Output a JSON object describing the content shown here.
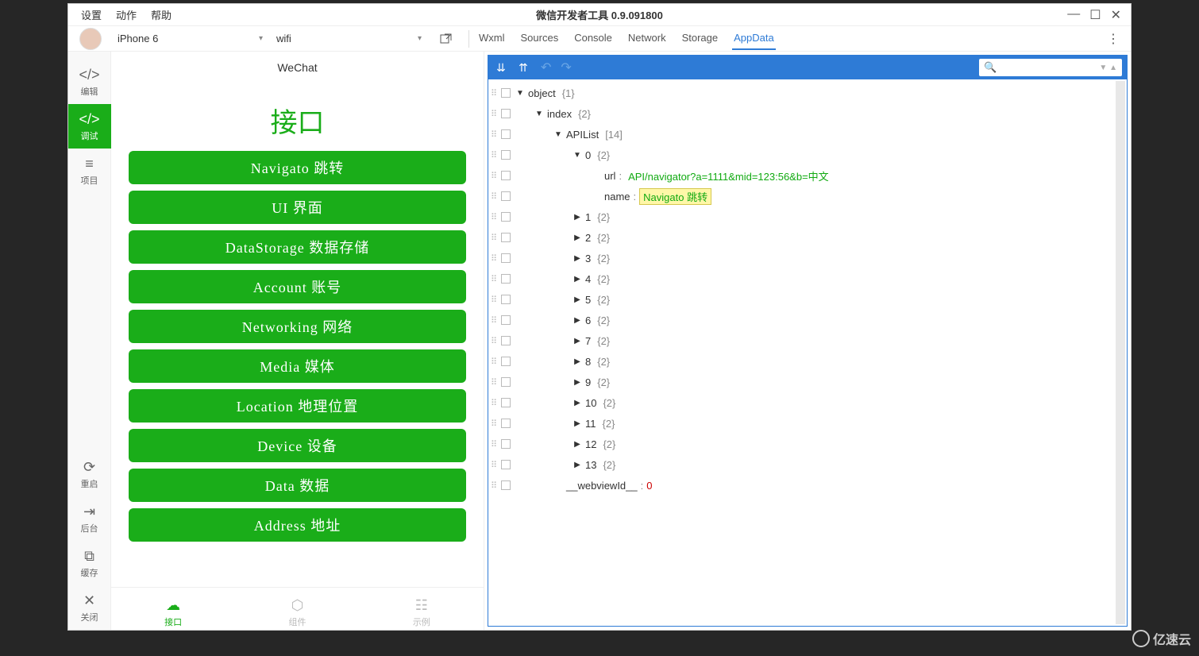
{
  "window": {
    "title": "微信开发者工具 0.9.091800",
    "menus": [
      "设置",
      "动作",
      "帮助"
    ]
  },
  "toolbar": {
    "device": "iPhone 6",
    "network": "wifi",
    "devtabs": [
      "Wxml",
      "Sources",
      "Console",
      "Network",
      "Storage",
      "AppData"
    ],
    "active_devtab": "AppData"
  },
  "sidebar": {
    "items": [
      {
        "icon": "</>",
        "label": "编辑"
      },
      {
        "icon": "</>",
        "label": "调试"
      },
      {
        "icon": "≡",
        "label": "项目"
      }
    ],
    "active_index": 1,
    "bottom": [
      {
        "icon": "⟳",
        "label": "重启"
      },
      {
        "icon": "⇥",
        "label": "后台"
      },
      {
        "icon": "⧉",
        "label": "缓存"
      },
      {
        "icon": "✕",
        "label": "关闭"
      }
    ]
  },
  "simulator": {
    "header": "WeChat",
    "title": "接口",
    "buttons": [
      "Navigato 跳转",
      "UI 界面",
      "DataStorage 数据存储",
      "Account 账号",
      "Networking 网络",
      "Media 媒体",
      "Location 地理位置",
      "Device 设备",
      "Data 数据",
      "Address 地址"
    ],
    "footer_tabs": [
      {
        "label": "接口"
      },
      {
        "label": "组件"
      },
      {
        "label": "示例"
      }
    ],
    "footer_active": 0
  },
  "appdata": {
    "root_label": "object",
    "root_count": "{1}",
    "index_label": "index",
    "index_count": "{2}",
    "apilist_label": "APIList",
    "apilist_count": "[14]",
    "item0_index": "0",
    "item0_count": "{2}",
    "item0_url_key": "url",
    "item0_url_val": "API/navigator?a=1111&mid=123:56&b=中文",
    "item0_name_key": "name",
    "item0_name_val": "Navigato 跳转",
    "collapsed": [
      {
        "idx": "1",
        "cnt": "{2}"
      },
      {
        "idx": "2",
        "cnt": "{2}"
      },
      {
        "idx": "3",
        "cnt": "{2}"
      },
      {
        "idx": "4",
        "cnt": "{2}"
      },
      {
        "idx": "5",
        "cnt": "{2}"
      },
      {
        "idx": "6",
        "cnt": "{2}"
      },
      {
        "idx": "7",
        "cnt": "{2}"
      },
      {
        "idx": "8",
        "cnt": "{2}"
      },
      {
        "idx": "9",
        "cnt": "{2}"
      },
      {
        "idx": "10",
        "cnt": "{2}"
      },
      {
        "idx": "11",
        "cnt": "{2}"
      },
      {
        "idx": "12",
        "cnt": "{2}"
      },
      {
        "idx": "13",
        "cnt": "{2}"
      }
    ],
    "webview_key": "__webviewId__",
    "webview_val": "0"
  },
  "colors": {
    "wechat_green": "#1aad19",
    "devtools_blue": "#2e7bd6",
    "highlight_bg": "#fff7a8"
  },
  "watermark": "亿速云"
}
